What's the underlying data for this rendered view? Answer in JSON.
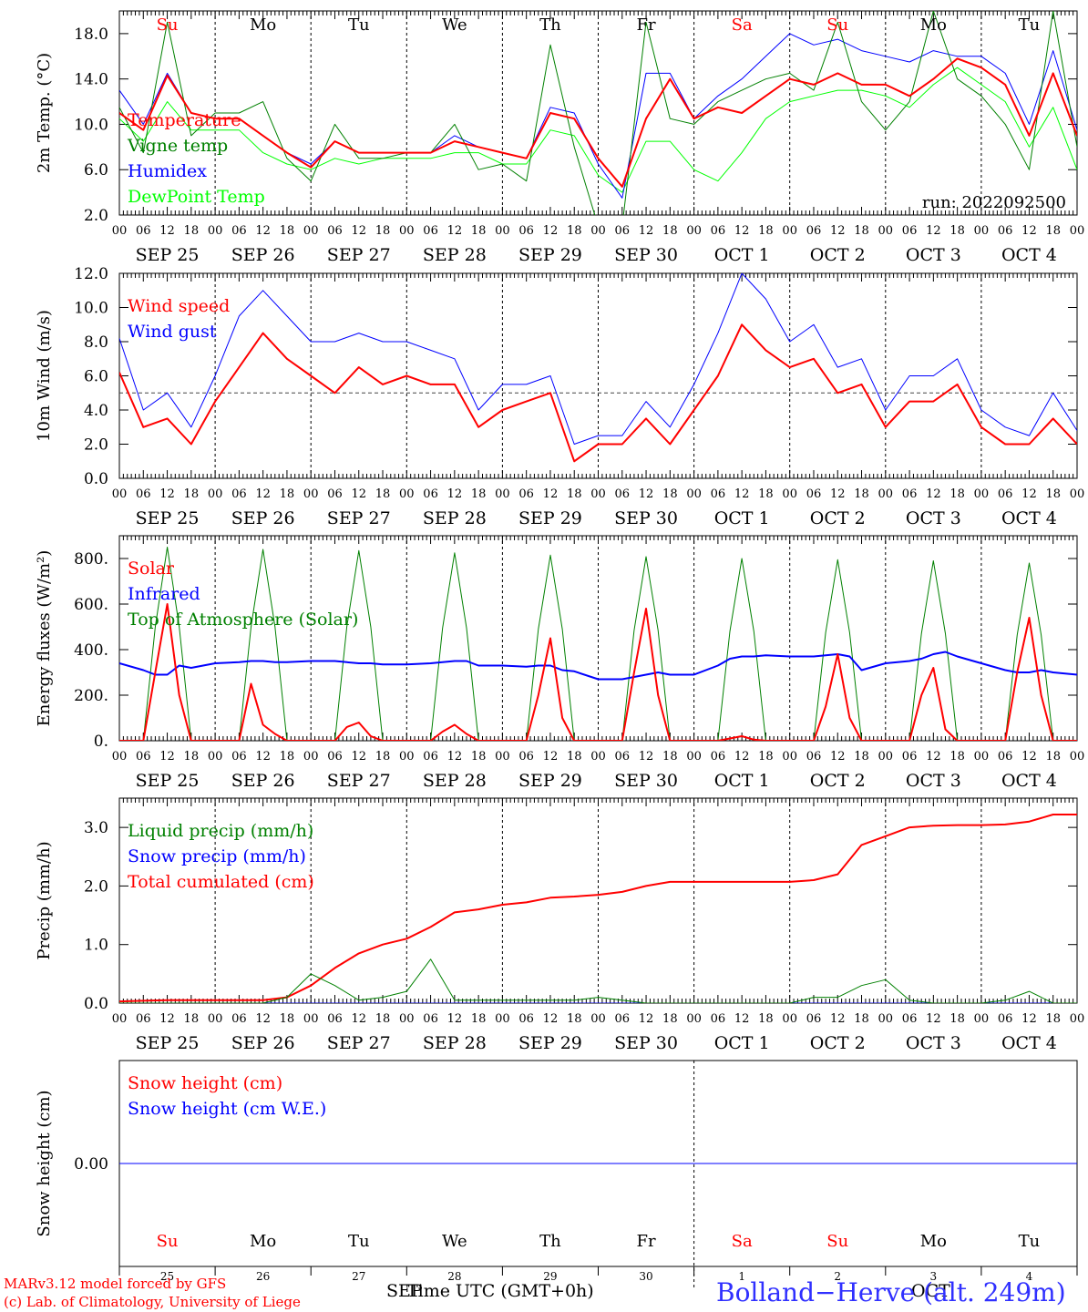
{
  "footer": {
    "credit_line1": "MARv3.12 model forced by GFS",
    "credit_line2": "(c) Lab. of Climatology, University of Liege",
    "axis_title": "Time UTC (GMT+0h)",
    "month_left": "SEP",
    "month_right": "OCT",
    "station": "Bolland−Herve (alt. 249m)"
  },
  "time_axis": {
    "hour_labels": [
      "00",
      "06",
      "12",
      "18"
    ],
    "final_hour": "00",
    "date_labels": [
      "SEP 25",
      "SEP 26",
      "SEP 27",
      "SEP 28",
      "SEP 29",
      "SEP 30",
      "OCT  1",
      "OCT  2",
      "OCT  3",
      "OCT  4"
    ],
    "weekdays": [
      "Su",
      "Mo",
      "Tu",
      "We",
      "Th",
      "Fr",
      "Sa",
      "Su",
      "Mo",
      "Tu"
    ],
    "weekday_colors": [
      "#ff0000",
      "#000000",
      "#000000",
      "#000000",
      "#000000",
      "#000000",
      "#ff0000",
      "#ff0000",
      "#000000",
      "#000000"
    ],
    "day_numbers": [
      "25",
      "26",
      "27",
      "28",
      "29",
      "30",
      "1",
      "2",
      "3",
      "4"
    ]
  },
  "chart_data": [
    {
      "type": "line",
      "id": "temp",
      "ylabel": "2m Temp. (°C)",
      "ylim": [
        2,
        20
      ],
      "yticks": [
        2,
        6,
        10,
        14,
        18
      ],
      "ytick_labels": [
        "2.0",
        "6.0",
        "10.0",
        "14.0",
        "18.0"
      ],
      "annotation": "run: 2022092500",
      "x_hours": [
        0,
        6,
        12,
        18,
        24,
        30,
        36,
        42,
        48,
        54,
        60,
        66,
        72,
        78,
        84,
        90,
        96,
        102,
        108,
        114,
        120,
        126,
        132,
        138,
        144,
        150,
        156,
        162,
        168,
        174,
        180,
        186,
        192,
        198,
        204,
        210,
        216,
        222,
        228,
        234,
        240
      ],
      "series": [
        {
          "name": "Temperature",
          "color": "#ff0000",
          "width": 2,
          "values": [
            11.0,
            9.5,
            14.3,
            11.0,
            10.5,
            10.5,
            9.0,
            7.5,
            6.2,
            8.5,
            7.5,
            7.5,
            7.5,
            7.5,
            8.5,
            8.0,
            7.5,
            7.0,
            11.0,
            10.5,
            7.0,
            4.5,
            10.5,
            14.0,
            10.5,
            11.5,
            11.0,
            12.5,
            14.0,
            13.5,
            14.5,
            13.5,
            13.5,
            12.5,
            14.0,
            15.8,
            15.0,
            13.5,
            9.0,
            14.5,
            9.0
          ]
        },
        {
          "name": "Vigne temp",
          "color": "#008000",
          "width": 1,
          "values": [
            11.5,
            7.5,
            19.0,
            9.0,
            11.0,
            11.0,
            12.0,
            7.0,
            5.0,
            10.0,
            7.0,
            7.0,
            7.5,
            7.5,
            10.0,
            6.0,
            6.5,
            5.0,
            17.0,
            8.0,
            1.0,
            1.0,
            19.0,
            10.5,
            10.0,
            12.0,
            13.0,
            14.0,
            14.5,
            13.0,
            19.0,
            12.0,
            9.5,
            12.0,
            20.0,
            14.0,
            12.5,
            10.0,
            6.0,
            20.0,
            8.0
          ]
        },
        {
          "name": "Humidex",
          "color": "#0000ff",
          "width": 1,
          "values": [
            13.0,
            10.0,
            14.5,
            11.0,
            10.5,
            10.5,
            9.0,
            7.5,
            6.5,
            8.5,
            7.5,
            7.5,
            7.5,
            7.5,
            9.0,
            8.0,
            7.5,
            7.0,
            11.5,
            11.0,
            6.5,
            3.5,
            14.5,
            14.5,
            10.5,
            12.5,
            14.0,
            16.0,
            18.0,
            17.0,
            17.5,
            16.5,
            16.0,
            15.5,
            16.5,
            16.0,
            16.0,
            14.5,
            10.0,
            16.5,
            9.5
          ]
        },
        {
          "name": "DewPoint Temp",
          "color": "#00ff00",
          "width": 1,
          "values": [
            10.5,
            8.5,
            12.0,
            9.5,
            9.5,
            9.5,
            7.5,
            6.5,
            6.0,
            7.0,
            6.5,
            7.0,
            7.0,
            7.0,
            7.5,
            7.5,
            6.5,
            6.5,
            9.5,
            9.0,
            5.5,
            4.0,
            8.5,
            8.5,
            6.0,
            5.0,
            7.5,
            10.5,
            12.0,
            12.5,
            13.0,
            13.0,
            12.5,
            11.5,
            13.5,
            15.0,
            13.5,
            12.0,
            8.0,
            11.5,
            6.0
          ]
        }
      ]
    },
    {
      "type": "line",
      "id": "wind",
      "ylabel": "10m Wind (m/s)",
      "ylim": [
        0,
        12
      ],
      "yticks": [
        0,
        2,
        4,
        6,
        8,
        10,
        12
      ],
      "ytick_labels": [
        "0.0",
        "2.0",
        "4.0",
        "6.0",
        "8.0",
        "10.0",
        "12.0"
      ],
      "reference_line": 5.0,
      "x_hours": [
        0,
        6,
        12,
        18,
        24,
        30,
        36,
        42,
        48,
        54,
        60,
        66,
        72,
        78,
        84,
        90,
        96,
        102,
        108,
        114,
        120,
        126,
        132,
        138,
        144,
        150,
        156,
        162,
        168,
        174,
        180,
        186,
        192,
        198,
        204,
        210,
        216,
        222,
        228,
        234,
        240
      ],
      "series": [
        {
          "name": "Wind speed",
          "color": "#ff0000",
          "width": 2,
          "values": [
            6.2,
            3.0,
            3.5,
            2.0,
            4.5,
            6.5,
            8.5,
            7.0,
            6.0,
            5.0,
            6.5,
            5.5,
            6.0,
            5.5,
            5.5,
            3.0,
            4.0,
            4.5,
            5.0,
            1.0,
            2.0,
            2.0,
            3.5,
            2.0,
            4.0,
            6.0,
            9.0,
            7.5,
            6.5,
            7.0,
            5.0,
            5.5,
            3.0,
            4.5,
            4.5,
            5.5,
            3.0,
            2.0,
            2.0,
            3.5,
            2.0
          ]
        },
        {
          "name": "Wind gust",
          "color": "#0000ff",
          "width": 1,
          "values": [
            8.2,
            4.0,
            5.0,
            3.0,
            6.0,
            9.5,
            11.0,
            9.5,
            8.0,
            8.0,
            8.5,
            8.0,
            8.0,
            7.5,
            7.0,
            4.0,
            5.5,
            5.5,
            6.0,
            2.0,
            2.5,
            2.5,
            4.5,
            3.0,
            5.5,
            8.5,
            12.0,
            10.5,
            8.0,
            9.0,
            6.5,
            7.0,
            4.0,
            6.0,
            6.0,
            7.0,
            4.0,
            3.0,
            2.5,
            5.0,
            2.8
          ]
        }
      ]
    },
    {
      "type": "line",
      "id": "energy",
      "ylabel": "Energy fluxes (W/m²)",
      "ylim": [
        0,
        900
      ],
      "yticks": [
        0,
        200,
        400,
        600,
        800
      ],
      "ytick_labels": [
        "0.",
        "200.",
        "400.",
        "600.",
        "800."
      ],
      "x_hours": [
        0,
        6,
        9,
        12,
        15,
        18,
        24,
        30,
        33,
        36,
        39,
        42,
        48,
        54,
        57,
        60,
        63,
        66,
        72,
        78,
        81,
        84,
        87,
        90,
        96,
        102,
        105,
        108,
        111,
        114,
        120,
        126,
        129,
        132,
        135,
        138,
        144,
        150,
        153,
        156,
        159,
        162,
        168,
        174,
        177,
        180,
        183,
        186,
        192,
        198,
        201,
        204,
        207,
        210,
        216,
        222,
        225,
        228,
        231,
        234,
        240
      ],
      "series": [
        {
          "name": "Solar",
          "color": "#ff0000",
          "width": 2,
          "values": [
            0,
            0,
            300,
            600,
            200,
            0,
            0,
            0,
            250,
            70,
            30,
            0,
            0,
            0,
            60,
            80,
            20,
            0,
            0,
            0,
            40,
            70,
            30,
            0,
            0,
            0,
            200,
            450,
            100,
            0,
            0,
            0,
            300,
            580,
            200,
            0,
            0,
            0,
            10,
            20,
            5,
            0,
            0,
            0,
            150,
            380,
            100,
            0,
            0,
            0,
            200,
            320,
            50,
            0,
            0,
            0,
            300,
            540,
            200,
            0,
            0
          ]
        },
        {
          "name": "Infrared",
          "color": "#0000ff",
          "width": 2,
          "values": [
            340,
            310,
            290,
            290,
            330,
            320,
            340,
            345,
            350,
            350,
            345,
            345,
            350,
            350,
            345,
            340,
            340,
            335,
            335,
            340,
            345,
            350,
            350,
            330,
            330,
            325,
            330,
            330,
            310,
            305,
            270,
            270,
            280,
            290,
            300,
            290,
            290,
            330,
            360,
            370,
            370,
            375,
            370,
            370,
            375,
            380,
            370,
            310,
            340,
            350,
            360,
            380,
            390,
            370,
            340,
            310,
            300,
            300,
            310,
            300,
            290
          ]
        },
        {
          "name": "Top of Atmosphere (Solar)",
          "color": "#008000",
          "width": 1,
          "values": [
            0,
            0,
            500,
            850,
            500,
            0,
            0,
            0,
            500,
            840,
            500,
            0,
            0,
            0,
            500,
            835,
            500,
            0,
            0,
            0,
            495,
            825,
            495,
            0,
            0,
            0,
            490,
            815,
            490,
            0,
            0,
            0,
            485,
            808,
            485,
            0,
            0,
            0,
            480,
            800,
            480,
            0,
            0,
            0,
            475,
            795,
            475,
            0,
            0,
            0,
            470,
            790,
            470,
            0,
            0,
            0,
            465,
            780,
            465,
            0,
            0
          ]
        }
      ]
    },
    {
      "type": "line",
      "id": "precip",
      "ylabel": "Precip (mm/h)",
      "ylim": [
        0,
        3.5
      ],
      "yticks": [
        0,
        1,
        2,
        3
      ],
      "ytick_labels": [
        "0.0",
        "1.0",
        "2.0",
        "3.0"
      ],
      "x_hours": [
        0,
        6,
        12,
        18,
        24,
        30,
        36,
        42,
        48,
        54,
        60,
        66,
        72,
        78,
        84,
        90,
        96,
        102,
        108,
        114,
        120,
        126,
        132,
        138,
        144,
        150,
        156,
        162,
        168,
        174,
        180,
        186,
        192,
        198,
        204,
        210,
        216,
        222,
        228,
        234,
        240
      ],
      "series": [
        {
          "name": "Liquid precip (mm/h)",
          "color": "#008000",
          "width": 1,
          "values": [
            0,
            0,
            0,
            0,
            0,
            0,
            0,
            0.1,
            0.5,
            0.3,
            0.05,
            0.1,
            0.2,
            0.75,
            0.05,
            0.05,
            0.05,
            0.05,
            0.05,
            0.05,
            0.1,
            0.05,
            0,
            0,
            0,
            0,
            0,
            0,
            0,
            0.1,
            0.1,
            0.3,
            0.4,
            0.05,
            0,
            0,
            0,
            0.05,
            0.2,
            0,
            0
          ]
        },
        {
          "name": "Snow precip (mm/h)",
          "color": "#0000ff",
          "width": 1,
          "values": [
            0,
            0,
            0,
            0,
            0,
            0,
            0,
            0,
            0,
            0,
            0,
            0,
            0,
            0,
            0,
            0,
            0,
            0,
            0,
            0,
            0,
            0,
            0,
            0,
            0,
            0,
            0,
            0,
            0,
            0,
            0,
            0,
            0,
            0,
            0,
            0,
            0,
            0,
            0,
            0,
            0
          ]
        },
        {
          "name": "Total cumulated (cm)",
          "color": "#ff0000",
          "width": 2,
          "values": [
            0.03,
            0.04,
            0.05,
            0.05,
            0.05,
            0.05,
            0.05,
            0.1,
            0.3,
            0.6,
            0.85,
            1.0,
            1.1,
            1.3,
            1.55,
            1.6,
            1.68,
            1.72,
            1.8,
            1.82,
            1.85,
            1.9,
            2.0,
            2.07,
            2.07,
            2.07,
            2.07,
            2.07,
            2.07,
            2.1,
            2.2,
            2.7,
            2.85,
            3.0,
            3.03,
            3.04,
            3.04,
            3.05,
            3.1,
            3.22,
            3.22
          ]
        }
      ]
    },
    {
      "type": "line",
      "id": "snow",
      "ylabel": "Snow height (cm)",
      "ylim": [
        -1,
        1
      ],
      "yticks": [
        0
      ],
      "ytick_labels": [
        "0.00"
      ],
      "x_hours": [
        0,
        240
      ],
      "series": [
        {
          "name": "Snow height (cm)",
          "color": "#ff0000",
          "width": 1,
          "values": [
            0,
            0
          ]
        },
        {
          "name": "Snow height (cm W.E.)",
          "color": "#0000ff",
          "width": 1,
          "values": [
            0,
            0
          ]
        }
      ]
    }
  ]
}
